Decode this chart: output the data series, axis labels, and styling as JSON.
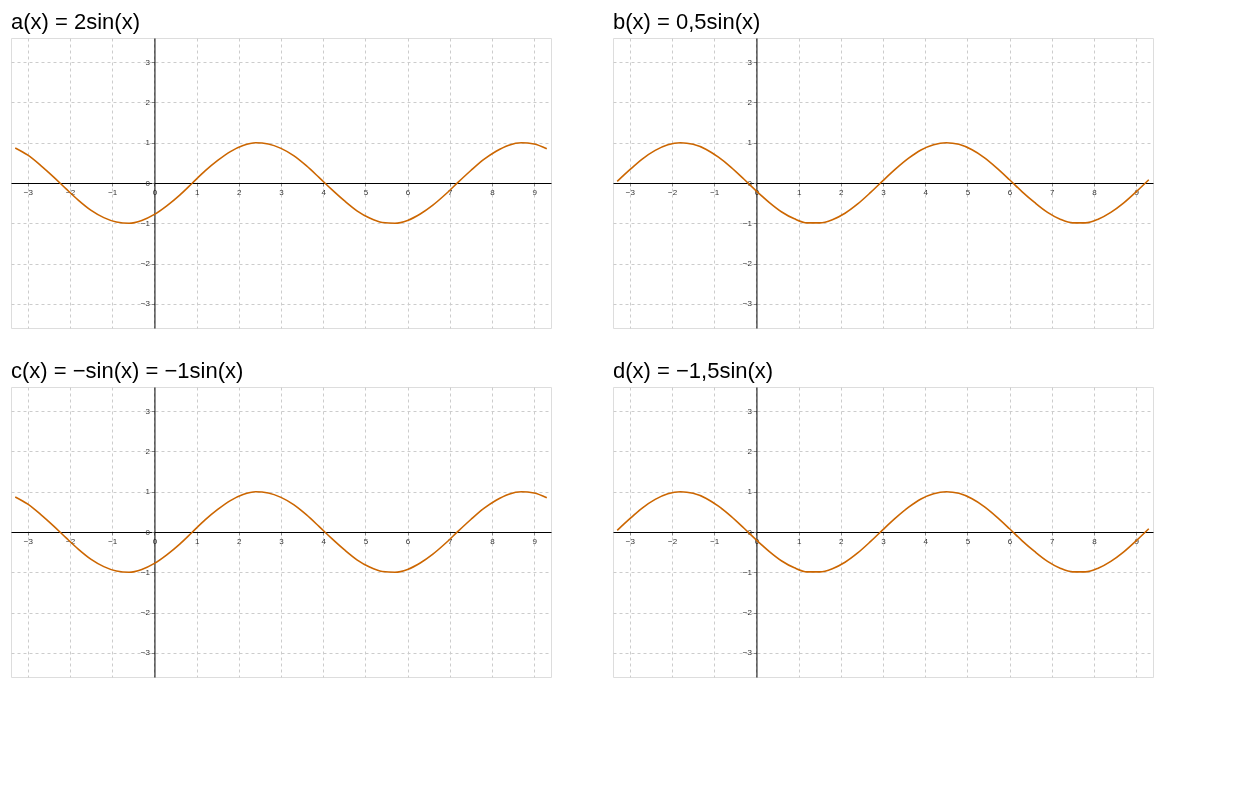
{
  "chart_data": [
    {
      "type": "line",
      "title": "a(x) = 2sin(x)",
      "xlim": [
        -3.4,
        9.4
      ],
      "ylim": [
        -3.6,
        3.6
      ],
      "xticks": [
        -3,
        -2,
        -1,
        0,
        1,
        2,
        3,
        4,
        5,
        6,
        7,
        8,
        9
      ],
      "yticks": [
        -3,
        -2,
        -1,
        0,
        1,
        2,
        3
      ],
      "grid": true,
      "x": [
        -3.3,
        -3.0,
        -2.7,
        -2.4,
        -2.1,
        -1.8,
        -1.5,
        -1.2,
        -0.9,
        -0.6,
        -0.3,
        0.0,
        0.3,
        0.6,
        0.9,
        1.2,
        1.5,
        1.8,
        2.1,
        2.4,
        2.7,
        3.0,
        3.3,
        3.6,
        3.9,
        4.2,
        4.5,
        4.8,
        5.1,
        5.4,
        5.7,
        6.0,
        6.3,
        6.6,
        6.9,
        7.2,
        7.5,
        7.8,
        8.1,
        8.4,
        8.7,
        9.0,
        9.3
      ],
      "series": [
        {
          "color": "#cc6600",
          "values": [
            0.87,
            0.69,
            0.44,
            0.16,
            -0.14,
            -0.43,
            -0.68,
            -0.86,
            -0.97,
            -1.0,
            -0.93,
            -0.78,
            -0.56,
            -0.3,
            0.0,
            0.3,
            0.56,
            0.78,
            0.93,
            1.0,
            0.97,
            0.86,
            0.68,
            0.43,
            0.14,
            -0.16,
            -0.44,
            -0.69,
            -0.87,
            -0.98,
            -1.0,
            -0.93,
            -0.77,
            -0.55,
            -0.28,
            0.02,
            0.31,
            0.58,
            0.79,
            0.94,
            1.0,
            0.97,
            0.85
          ]
        }
      ]
    },
    {
      "type": "line",
      "title": "b(x) = 0,5sin(x)",
      "xlim": [
        -3.4,
        9.4
      ],
      "ylim": [
        -3.6,
        3.6
      ],
      "xticks": [
        -3,
        -2,
        -1,
        0,
        1,
        2,
        3,
        4,
        5,
        6,
        7,
        8,
        9
      ],
      "yticks": [
        -3,
        -2,
        -1,
        0,
        1,
        2,
        3
      ],
      "grid": true,
      "x": [
        -3.3,
        -3.0,
        -2.7,
        -2.4,
        -2.1,
        -1.8,
        -1.5,
        -1.2,
        -0.9,
        -0.6,
        -0.3,
        0.0,
        0.3,
        0.6,
        0.9,
        1.2,
        1.5,
        1.8,
        2.1,
        2.4,
        2.7,
        3.0,
        3.3,
        3.6,
        3.9,
        4.2,
        4.5,
        4.8,
        5.1,
        5.4,
        5.7,
        6.0,
        6.3,
        6.6,
        6.9,
        7.2,
        7.5,
        7.8,
        8.1,
        8.4,
        8.7,
        9.0,
        9.3
      ],
      "series": [
        {
          "color": "#cc6600",
          "values": [
            0.04,
            0.33,
            0.6,
            0.81,
            0.95,
            1.0,
            0.96,
            0.84,
            0.64,
            0.39,
            0.1,
            -0.2,
            -0.48,
            -0.72,
            -0.89,
            -0.99,
            -0.99,
            -0.91,
            -0.75,
            -0.52,
            -0.24,
            0.06,
            0.35,
            0.61,
            0.82,
            0.95,
            1.0,
            0.96,
            0.83,
            0.63,
            0.37,
            0.08,
            -0.22,
            -0.49,
            -0.73,
            -0.9,
            -0.99,
            -0.99,
            -0.9,
            -0.73,
            -0.5,
            -0.22,
            0.08
          ]
        }
      ]
    },
    {
      "type": "line",
      "title": "c(x) = −sin(x) = −1sin(x)",
      "xlim": [
        -3.4,
        9.4
      ],
      "ylim": [
        -3.6,
        3.6
      ],
      "xticks": [
        -3,
        -2,
        -1,
        0,
        1,
        2,
        3,
        4,
        5,
        6,
        7,
        8,
        9
      ],
      "yticks": [
        -3,
        -2,
        -1,
        0,
        1,
        2,
        3
      ],
      "grid": true,
      "x": [
        -3.3,
        -3.0,
        -2.7,
        -2.4,
        -2.1,
        -1.8,
        -1.5,
        -1.2,
        -0.9,
        -0.6,
        -0.3,
        0.0,
        0.3,
        0.6,
        0.9,
        1.2,
        1.5,
        1.8,
        2.1,
        2.4,
        2.7,
        3.0,
        3.3,
        3.6,
        3.9,
        4.2,
        4.5,
        4.8,
        5.1,
        5.4,
        5.7,
        6.0,
        6.3,
        6.6,
        6.9,
        7.2,
        7.5,
        7.8,
        8.1,
        8.4,
        8.7,
        9.0,
        9.3
      ],
      "series": [
        {
          "color": "#cc6600",
          "values": [
            0.87,
            0.69,
            0.44,
            0.16,
            -0.14,
            -0.43,
            -0.68,
            -0.86,
            -0.97,
            -1.0,
            -0.93,
            -0.78,
            -0.56,
            -0.3,
            0.0,
            0.3,
            0.56,
            0.78,
            0.93,
            1.0,
            0.97,
            0.86,
            0.68,
            0.43,
            0.14,
            -0.16,
            -0.44,
            -0.69,
            -0.87,
            -0.98,
            -1.0,
            -0.93,
            -0.77,
            -0.55,
            -0.28,
            0.02,
            0.31,
            0.58,
            0.79,
            0.94,
            1.0,
            0.97,
            0.85
          ]
        }
      ]
    },
    {
      "type": "line",
      "title": "d(x) = −1,5sin(x)",
      "xlim": [
        -3.4,
        9.4
      ],
      "ylim": [
        -3.6,
        3.6
      ],
      "xticks": [
        -3,
        -2,
        -1,
        0,
        1,
        2,
        3,
        4,
        5,
        6,
        7,
        8,
        9
      ],
      "yticks": [
        -3,
        -2,
        -1,
        0,
        1,
        2,
        3
      ],
      "grid": true,
      "x": [
        -3.3,
        -3.0,
        -2.7,
        -2.4,
        -2.1,
        -1.8,
        -1.5,
        -1.2,
        -0.9,
        -0.6,
        -0.3,
        0.0,
        0.3,
        0.6,
        0.9,
        1.2,
        1.5,
        1.8,
        2.1,
        2.4,
        2.7,
        3.0,
        3.3,
        3.6,
        3.9,
        4.2,
        4.5,
        4.8,
        5.1,
        5.4,
        5.7,
        6.0,
        6.3,
        6.6,
        6.9,
        7.2,
        7.5,
        7.8,
        8.1,
        8.4,
        8.7,
        9.0,
        9.3
      ],
      "series": [
        {
          "color": "#cc6600",
          "values": [
            0.04,
            0.33,
            0.6,
            0.81,
            0.95,
            1.0,
            0.96,
            0.84,
            0.64,
            0.39,
            0.1,
            -0.2,
            -0.48,
            -0.72,
            -0.89,
            -0.99,
            -0.99,
            -0.91,
            -0.75,
            -0.52,
            -0.24,
            0.06,
            0.35,
            0.61,
            0.82,
            0.95,
            1.0,
            0.96,
            0.83,
            0.63,
            0.37,
            0.08,
            -0.22,
            -0.49,
            -0.73,
            -0.9,
            -0.99,
            -0.99,
            -0.9,
            -0.73,
            -0.5,
            -0.22,
            0.08
          ]
        }
      ]
    }
  ]
}
